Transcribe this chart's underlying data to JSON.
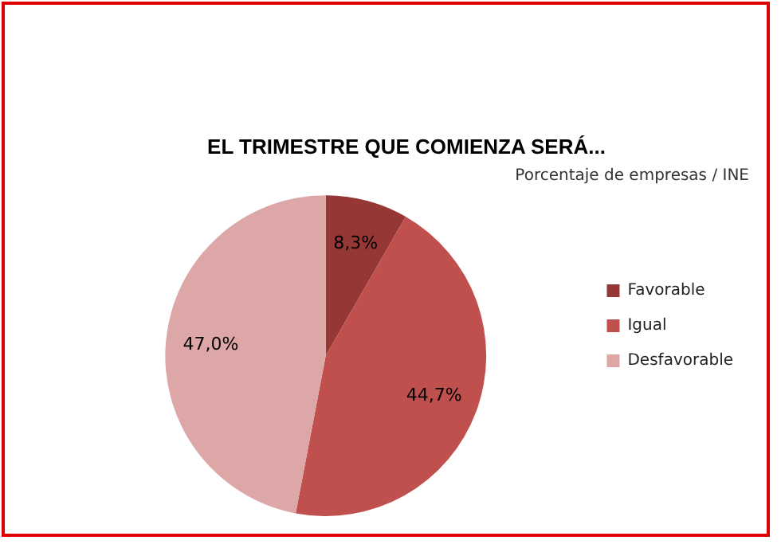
{
  "chart_data": {
    "type": "pie",
    "title": "EL TRIMESTRE QUE COMIENZA SERÁ...",
    "subtitle": "Porcentaje de empresas / INE",
    "categories": [
      "Favorable",
      "Igual",
      "Desfavorable"
    ],
    "values": [
      8.3,
      44.7,
      47.0
    ],
    "value_labels": [
      "8,3%",
      "44,7%",
      "47,0%"
    ],
    "colors": [
      "#953735",
      "#c0504d",
      "#dca7a6"
    ],
    "legend": "right"
  }
}
